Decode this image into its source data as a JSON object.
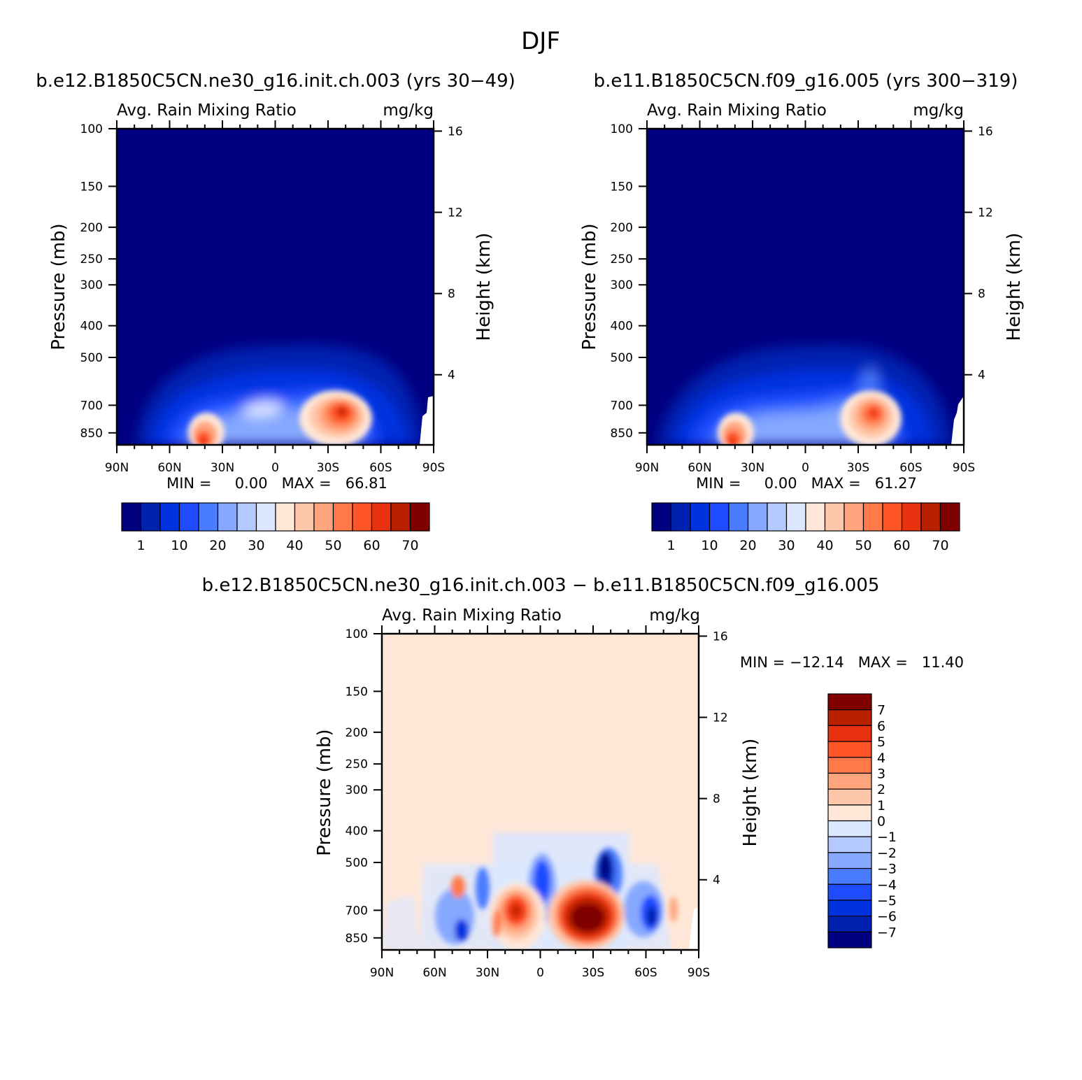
{
  "figure_title": "DJF",
  "panels": [
    {
      "id": "p1",
      "run_title": "b.e12.B1850C5CN.ne30_g16.init.ch.003 (yrs 30−49)",
      "var_label": "Avg. Rain Mixing Ratio",
      "units": "mg/kg",
      "min_max": "MIN =     0.00   MAX =   66.81"
    },
    {
      "id": "p2",
      "run_title": "b.e11.B1850C5CN.f09_g16.005 (yrs 300−319)",
      "var_label": "Avg. Rain Mixing Ratio",
      "units": "mg/kg",
      "min_max": "MIN =     0.00   MAX =   61.27"
    },
    {
      "id": "p3",
      "run_title": "b.e12.B1850C5CN.ne30_g16.init.ch.003 − b.e11.B1850C5CN.f09_g16.005",
      "var_label": "Avg. Rain Mixing Ratio",
      "units": "mg/kg",
      "min_max": "MIN = −12.14   MAX =   11.40"
    }
  ],
  "axes": {
    "ylabel": "Pressure (mb)",
    "ylabel_right": "Height (km)",
    "pressure_ticks": [
      "100",
      "150",
      "200",
      "250",
      "300",
      "400",
      "500",
      "700",
      "850"
    ],
    "pressure_values": [
      100,
      150,
      200,
      250,
      300,
      400,
      500,
      700,
      850
    ],
    "height_ticks": [
      "16",
      "12",
      "8",
      "4"
    ],
    "height_values": [
      16,
      12,
      8,
      4
    ],
    "lat_ticks": [
      "90N",
      "60N",
      "30N",
      "0",
      "30S",
      "60S",
      "90S"
    ],
    "lat_values": [
      90,
      60,
      30,
      0,
      -30,
      -60,
      -90
    ]
  },
  "colorbar_abs": {
    "labels": [
      "1",
      "10",
      "20",
      "30",
      "40",
      "50",
      "60",
      "70"
    ],
    "colors": [
      "#000080",
      "#0021b0",
      "#0032e0",
      "#1f4cff",
      "#4a7cff",
      "#86a8ff",
      "#b3c9ff",
      "#dbe7ff",
      "#ffe7d8",
      "#ffc7a9",
      "#ffa47c",
      "#ff7a48",
      "#ff5526",
      "#e8320f",
      "#b82000",
      "#800000"
    ]
  },
  "colorbar_diff": {
    "labels": [
      "7",
      "6",
      "5",
      "4",
      "3",
      "2",
      "1",
      "0",
      "−1",
      "−2",
      "−3",
      "−4",
      "−5",
      "−6",
      "−7"
    ],
    "colors": [
      "#800000",
      "#b82000",
      "#e8320f",
      "#ff5526",
      "#ff7a48",
      "#ffa47c",
      "#ffc7a9",
      "#ffe7d8",
      "#dbe7ff",
      "#b3c9ff",
      "#86a8ff",
      "#4a7cff",
      "#1f4cff",
      "#0032e0",
      "#0021b0",
      "#000080"
    ]
  },
  "chart_data": [
    {
      "type": "heatmap",
      "title": "b.e12.B1850C5CN.ne30_g16.init.ch.003 (yrs 30−49)",
      "variable": "Avg. Rain Mixing Ratio",
      "units": "mg/kg",
      "xlabel": "",
      "ylabel": "Pressure (mb)",
      "ylabel_right": "Height (km)",
      "x_range": [
        90,
        -90
      ],
      "y_range": [
        100,
        925
      ],
      "y_scale": "log",
      "min": 0.0,
      "max": 66.81,
      "features": [
        {
          "lat": -35,
          "pressure": 720,
          "value": 65
        },
        {
          "lat": 45,
          "pressure": 900,
          "value": 60
        },
        {
          "lat": 0,
          "pressure": 700,
          "value": 30
        }
      ]
    },
    {
      "type": "heatmap",
      "title": "b.e11.B1850C5CN.f09_g16.005 (yrs 300−319)",
      "variable": "Avg. Rain Mixing Ratio",
      "units": "mg/kg",
      "xlabel": "",
      "ylabel": "Pressure (mb)",
      "ylabel_right": "Height (km)",
      "x_range": [
        90,
        -90
      ],
      "y_range": [
        100,
        925
      ],
      "y_scale": "log",
      "min": 0.0,
      "max": 61.27,
      "features": [
        {
          "lat": -35,
          "pressure": 730,
          "value": 60
        },
        {
          "lat": 45,
          "pressure": 900,
          "value": 55
        },
        {
          "lat": 0,
          "pressure": 700,
          "value": 30
        }
      ]
    },
    {
      "type": "heatmap",
      "title": "b.e12.B1850C5CN.ne30_g16.init.ch.003 − b.e11.B1850C5CN.f09_g16.005",
      "variable": "Avg. Rain Mixing Ratio",
      "units": "mg/kg",
      "xlabel": "",
      "ylabel": "Pressure (mb)",
      "ylabel_right": "Height (km)",
      "x_range": [
        90,
        -90
      ],
      "y_range": [
        100,
        925
      ],
      "y_scale": "log",
      "min": -12.14,
      "max": 11.4,
      "features": [
        {
          "lat": -25,
          "pressure": 720,
          "value": 11
        },
        {
          "lat": 12,
          "pressure": 700,
          "value": 8
        },
        {
          "lat": -35,
          "pressure": 540,
          "value": -12
        },
        {
          "lat": -60,
          "pressure": 720,
          "value": -9
        },
        {
          "lat": 5,
          "pressure": 600,
          "value": -6
        },
        {
          "lat": 45,
          "pressure": 820,
          "value": -7
        }
      ]
    }
  ]
}
